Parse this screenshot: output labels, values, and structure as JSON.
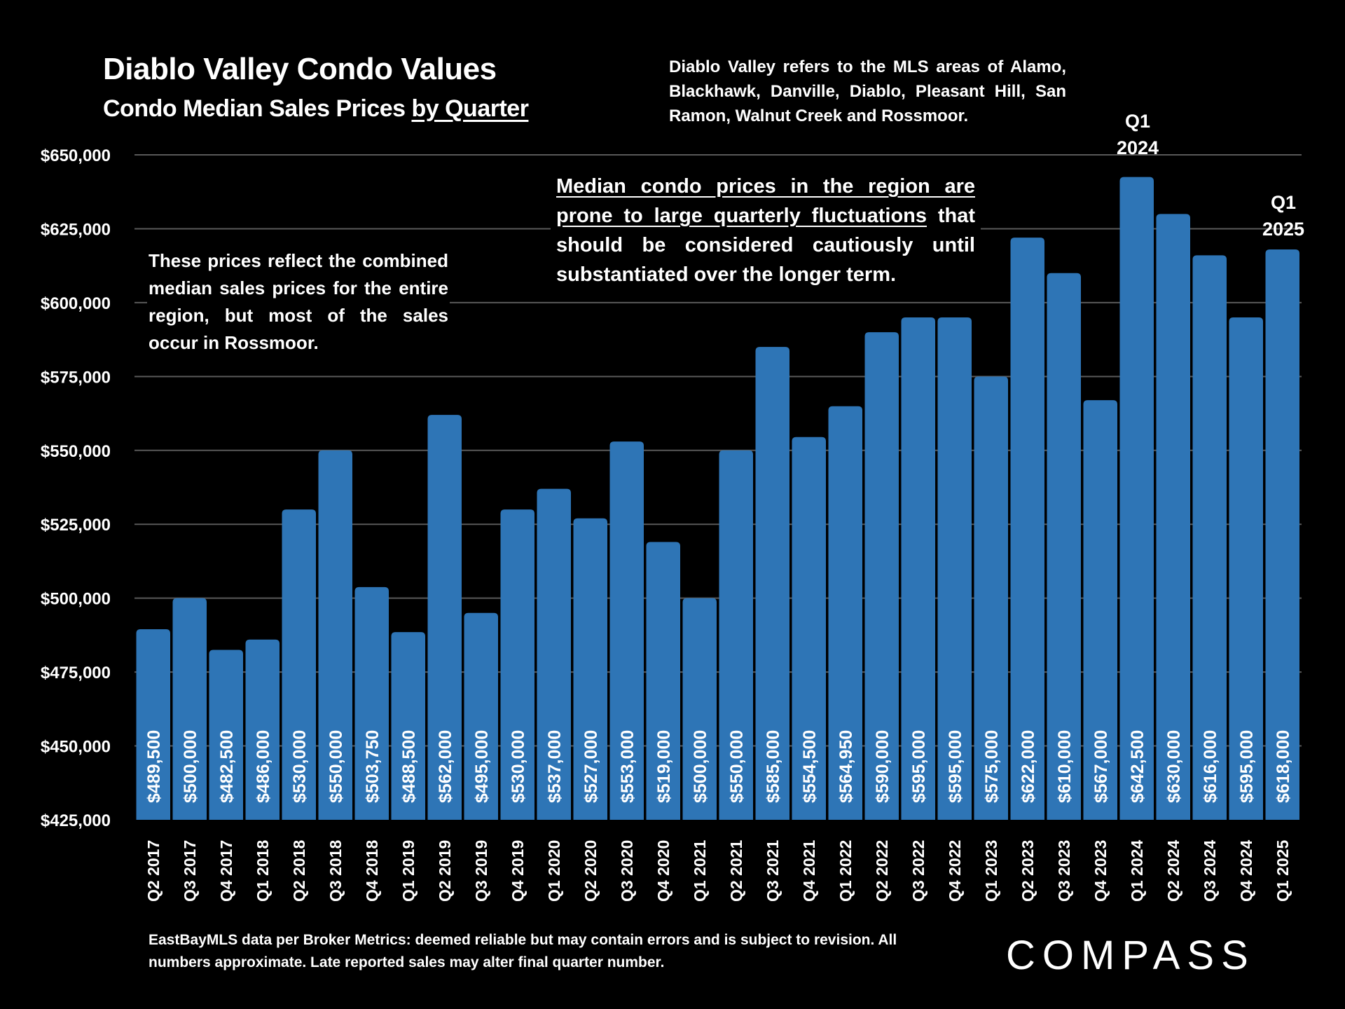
{
  "header": {
    "title": "Diablo Valley Condo Values",
    "subtitle_main": "Condo Median Sales Prices ",
    "subtitle_underlined": "by Quarter"
  },
  "notes": {
    "definition": "Diablo Valley refers to the MLS areas of Alamo, Blackhawk, Danville, Diablo, Pleasant Hill, San Ramon, Walnut Creek and Rossmoor.",
    "rossmoor": "These prices reflect the combined median sales prices for the entire region, but most of the sales occur in Rossmoor.",
    "fluctuation_underlined": "Median condo prices in the region are prone to large quarterly fluctuations",
    "fluctuation_rest": " that should be considered cautiously until substantiated over the longer term."
  },
  "callouts": {
    "q1_2024": [
      "Q1",
      "2024"
    ],
    "q1_2025": [
      "Q1",
      "2025"
    ]
  },
  "footer": {
    "disclaimer": "EastBayMLS data per Broker Metrics:  deemed reliable but may contain errors and is subject to revision. All numbers approximate. Late reported sales may alter final quarter number."
  },
  "brand": {
    "logo_text": "COMPASS"
  },
  "colors": {
    "background": "#000000",
    "bar": "#2E75B6",
    "grid": "#595959",
    "text": "#FFFFFF"
  },
  "chart_data": {
    "type": "bar",
    "title": "Diablo Valley Condo Values",
    "subtitle": "Condo Median Sales Prices by Quarter",
    "xlabel": "",
    "ylabel": "",
    "ylim": [
      425000,
      650000
    ],
    "yticks": [
      425000,
      450000,
      475000,
      500000,
      525000,
      550000,
      575000,
      600000,
      625000,
      650000
    ],
    "ytick_labels": [
      "$425,000",
      "$450,000",
      "$475,000",
      "$500,000",
      "$525,000",
      "$550,000",
      "$575,000",
      "$600,000",
      "$625,000",
      "$650,000"
    ],
    "grid": true,
    "legend": "none",
    "categories": [
      "Q2 2017",
      "Q3 2017",
      "Q4 2017",
      "Q1 2018",
      "Q2 2018",
      "Q3 2018",
      "Q4 2018",
      "Q1 2019",
      "Q2 2019",
      "Q3 2019",
      "Q4 2019",
      "Q1 2020",
      "Q2 2020",
      "Q3 2020",
      "Q4 2020",
      "Q1 2021",
      "Q2 2021",
      "Q3 2021",
      "Q4 2021",
      "Q1 2022",
      "Q2 2022",
      "Q3 2022",
      "Q4 2022",
      "Q1 2023",
      "Q2 2023",
      "Q3 2023",
      "Q4 2023",
      "Q1 2024",
      "Q2 2024",
      "Q3 2024",
      "Q4 2024",
      "Q1 2025"
    ],
    "values": [
      489500,
      500000,
      482500,
      486000,
      530000,
      550000,
      503750,
      488500,
      562000,
      495000,
      530000,
      537000,
      527000,
      553000,
      519000,
      500000,
      550000,
      585000,
      554500,
      564950,
      590000,
      595000,
      595000,
      575000,
      622000,
      610000,
      567000,
      642500,
      630000,
      616000,
      595000,
      618000
    ],
    "value_labels": [
      "$489,500",
      "$500,000",
      "$482,500",
      "$486,000",
      "$530,000",
      "$550,000",
      "$503,750",
      "$488,500",
      "$562,000",
      "$495,000",
      "$530,000",
      "$537,000",
      "$527,000",
      "$553,000",
      "$519,000",
      "$500,000",
      "$550,000",
      "$585,000",
      "$554,500",
      "$564,950",
      "$590,000",
      "$595,000",
      "$595,000",
      "$575,000",
      "$622,000",
      "$610,000",
      "$567,000",
      "$642,500",
      "$630,000",
      "$616,000",
      "$595,000",
      "$618,000"
    ]
  }
}
